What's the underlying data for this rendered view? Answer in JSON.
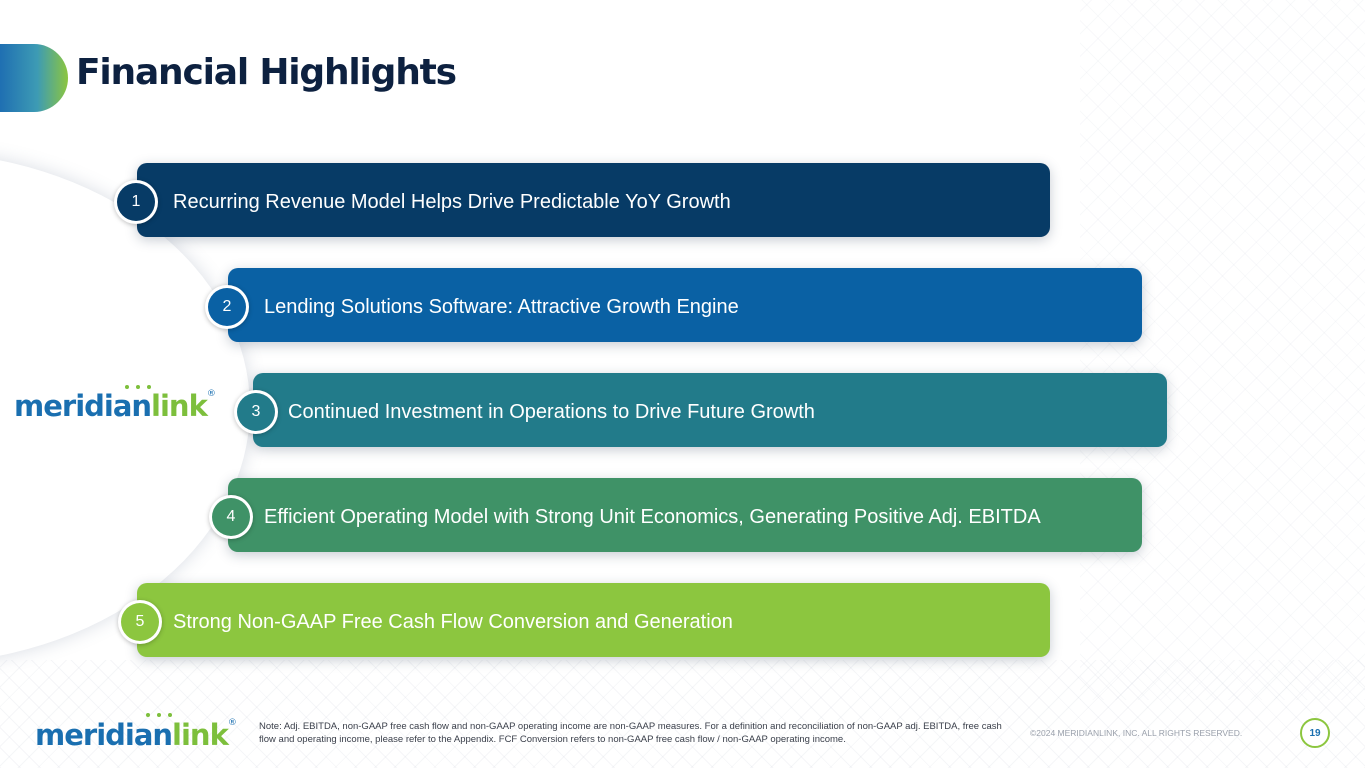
{
  "header": {
    "title": "Financial Highlights"
  },
  "brand": {
    "logo_text_a": "meridian",
    "logo_text_b": "link",
    "logo_mark": "®"
  },
  "highlights": [
    {
      "number": "1",
      "label": "Recurring Revenue Model Helps Drive Predictable YoY Growth",
      "color": "#073b66"
    },
    {
      "number": "2",
      "label": "Lending Solutions Software: Attractive Growth Engine",
      "color": "#0a61a4"
    },
    {
      "number": "3",
      "label": "Continued Investment in Operations to Drive Future Growth",
      "color": "#227b8a"
    },
    {
      "number": "4",
      "label": "Efficient Operating Model with Strong Unit Economics, Generating Positive Adj. EBITDA",
      "color": "#3f9267"
    },
    {
      "number": "5",
      "label": "Strong Non-GAAP Free Cash Flow Conversion and Generation",
      "color": "#8cc63f"
    }
  ],
  "footer": {
    "note": "Note: Adj. EBITDA, non-GAAP free cash flow and non-GAAP operating income are non-GAAP measures. For a definition and reconciliation of non-GAAP adj. EBITDA, free cash flow and operating income, please refer to the Appendix. FCF Conversion refers to non-GAAP free cash flow / non-GAAP operating income.",
    "copyright": "©2024 MERIDIANLINK, INC. ALL RIGHTS RESERVED.",
    "page_number": "19"
  }
}
